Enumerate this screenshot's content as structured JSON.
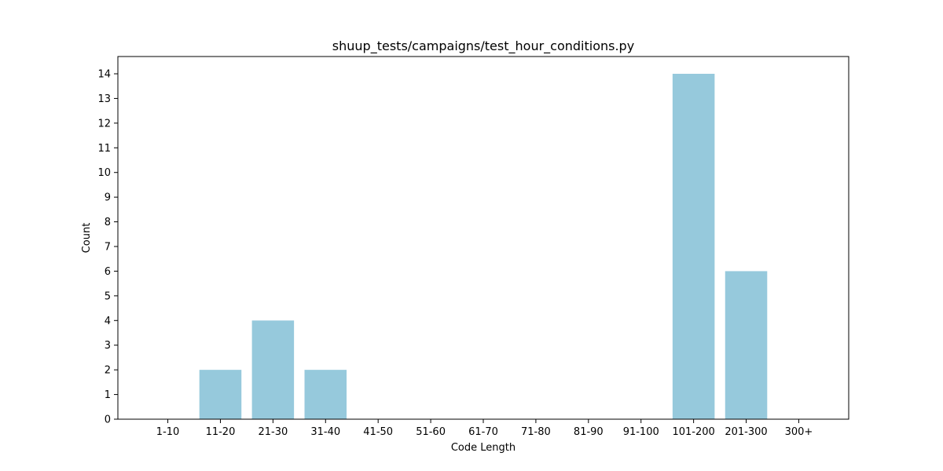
{
  "chart_data": {
    "type": "bar",
    "title": "shuup_tests/campaigns/test_hour_conditions.py",
    "xlabel": "Code Length",
    "ylabel": "Count",
    "categories": [
      "1-10",
      "11-20",
      "21-30",
      "31-40",
      "41-50",
      "51-60",
      "61-70",
      "71-80",
      "81-90",
      "91-100",
      "101-200",
      "201-300",
      "300+"
    ],
    "values": [
      0,
      2,
      4,
      2,
      0,
      0,
      0,
      0,
      0,
      0,
      14,
      6,
      0
    ],
    "ylim": [
      0,
      14.7
    ],
    "yticks": [
      0,
      1,
      2,
      3,
      4,
      5,
      6,
      7,
      8,
      9,
      10,
      11,
      12,
      13,
      14
    ],
    "bar_color": "#96c9dc",
    "grid": false
  }
}
